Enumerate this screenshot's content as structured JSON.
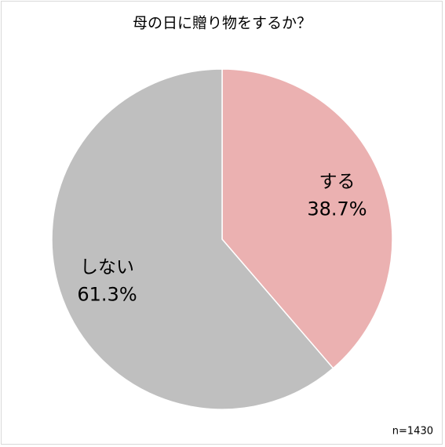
{
  "chart_data": {
    "type": "pie",
    "title": "母の日に贈り物をするか？",
    "categories": [
      "する",
      "しない"
    ],
    "values": [
      38.7,
      61.3
    ],
    "value_labels": [
      "38.7%",
      "61.3%"
    ],
    "colors": [
      "#ebb1b1",
      "#bfbfbf"
    ],
    "start_angle": 0,
    "direction": "clockwise",
    "note": "n=1430"
  }
}
